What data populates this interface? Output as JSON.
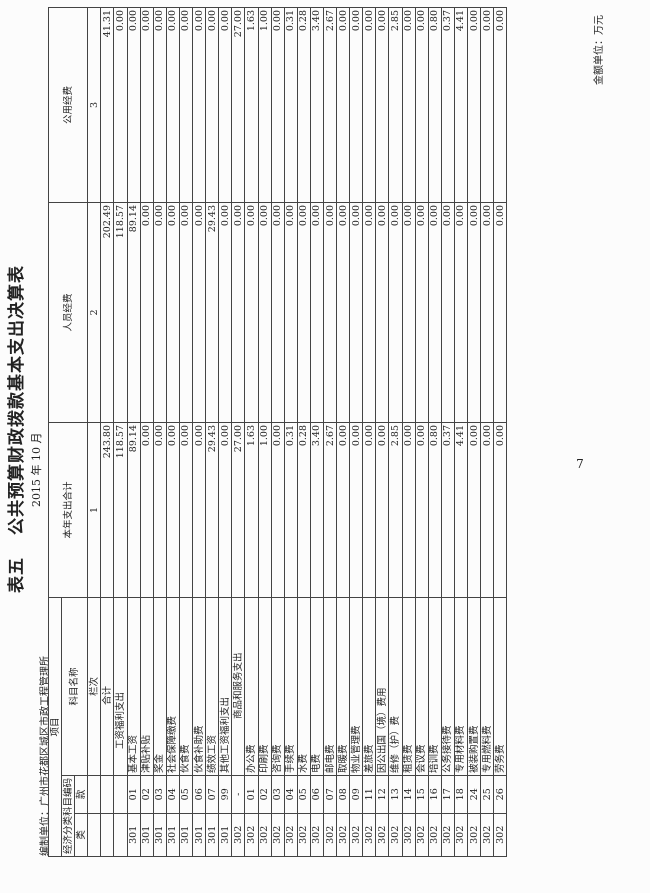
{
  "title": "公共预算财政拨款基本支出决算表",
  "table_no": "表五",
  "date": "2015 年 10 月",
  "org": "编制单位：广州市花都区城区市政工程管理所",
  "unit": "金额单位：万元",
  "page_number": "7",
  "headers": {
    "project": "项目",
    "econ_code": "经济分类科目编码",
    "item_name": "科目名称",
    "lei": "类",
    "kuan": "款",
    "total": "本年支出合计",
    "personnel": "人员经费",
    "public": "公用经费",
    "lanci": "栏次",
    "col1": "1",
    "col2": "2",
    "col3": "3"
  },
  "total_row": {
    "name": "合计",
    "total": "243.80",
    "personnel": "202.49",
    "public": "41.31"
  },
  "rows": [
    {
      "lei": "",
      "kuan": "",
      "name": "工资福利支出",
      "style": "ind1",
      "total": "118.57",
      "personnel": "118.57",
      "public": "0.00"
    },
    {
      "lei": "301",
      "kuan": "01",
      "name": "基本工资",
      "style": "",
      "total": "89.14",
      "personnel": "89.14",
      "public": "0.00"
    },
    {
      "lei": "301",
      "kuan": "02",
      "name": "津贴补贴",
      "style": "",
      "total": "0.00",
      "personnel": "0.00",
      "public": "0.00"
    },
    {
      "lei": "301",
      "kuan": "03",
      "name": "奖金",
      "style": "",
      "total": "0.00",
      "personnel": "0.00",
      "public": "0.00"
    },
    {
      "lei": "301",
      "kuan": "04",
      "name": "社会保障缴费",
      "style": "",
      "total": "0.00",
      "personnel": "0.00",
      "public": "0.00"
    },
    {
      "lei": "301",
      "kuan": "05",
      "name": "伙食费",
      "style": "",
      "total": "0.00",
      "personnel": "0.00",
      "public": "0.00"
    },
    {
      "lei": "301",
      "kuan": "06",
      "name": "伙食补助费",
      "style": "",
      "total": "0.00",
      "personnel": "0.00",
      "public": "0.00"
    },
    {
      "lei": "301",
      "kuan": "07",
      "name": "绩效工资",
      "style": "",
      "total": "29.43",
      "personnel": "29.43",
      "public": "0.00"
    },
    {
      "lei": "301",
      "kuan": "99",
      "name": "其他工资福利支出",
      "style": "",
      "total": "0.00",
      "personnel": "0.00",
      "public": "0.00"
    },
    {
      "lei": "302",
      "kuan": "-",
      "name": "商品和服务支出",
      "style": "ind2",
      "total": "27.00",
      "personnel": "0.00",
      "public": "27.00"
    },
    {
      "lei": "302",
      "kuan": "01",
      "name": "办公费",
      "style": "",
      "total": "1.63",
      "personnel": "0.00",
      "public": "1.63"
    },
    {
      "lei": "302",
      "kuan": "02",
      "name": "印刷费",
      "style": "",
      "total": "1.00",
      "personnel": "0.00",
      "public": "1.00"
    },
    {
      "lei": "302",
      "kuan": "03",
      "name": "咨询费",
      "style": "",
      "total": "0.00",
      "personnel": "0.00",
      "public": "0.00"
    },
    {
      "lei": "302",
      "kuan": "04",
      "name": "手续费",
      "style": "",
      "total": "0.31",
      "personnel": "0.00",
      "public": "0.31"
    },
    {
      "lei": "302",
      "kuan": "05",
      "name": "水费",
      "style": "",
      "total": "0.28",
      "personnel": "0.00",
      "public": "0.28"
    },
    {
      "lei": "302",
      "kuan": "06",
      "name": "电费",
      "style": "",
      "total": "3.40",
      "personnel": "0.00",
      "public": "3.40"
    },
    {
      "lei": "302",
      "kuan": "07",
      "name": "邮电费",
      "style": "",
      "total": "2.67",
      "personnel": "0.00",
      "public": "2.67"
    },
    {
      "lei": "302",
      "kuan": "08",
      "name": "取暖费",
      "style": "",
      "total": "0.00",
      "personnel": "0.00",
      "public": "0.00"
    },
    {
      "lei": "302",
      "kuan": "09",
      "name": "物业管理费",
      "style": "",
      "total": "0.00",
      "personnel": "0.00",
      "public": "0.00"
    },
    {
      "lei": "302",
      "kuan": "11",
      "name": "差旅费",
      "style": "",
      "total": "0.00",
      "personnel": "0.00",
      "public": "0.00"
    },
    {
      "lei": "302",
      "kuan": "12",
      "name": "因公出国（境）费用",
      "style": "",
      "total": "0.00",
      "personnel": "0.00",
      "public": "0.00"
    },
    {
      "lei": "302",
      "kuan": "13",
      "name": "维修（护）费",
      "style": "",
      "total": "2.85",
      "personnel": "0.00",
      "public": "2.85"
    },
    {
      "lei": "302",
      "kuan": "14",
      "name": "租赁费",
      "style": "",
      "total": "0.00",
      "personnel": "0.00",
      "public": "0.00"
    },
    {
      "lei": "302",
      "kuan": "15",
      "name": "会议费",
      "style": "",
      "total": "0.00",
      "personnel": "0.00",
      "public": "0.00"
    },
    {
      "lei": "302",
      "kuan": "16",
      "name": "培训费",
      "style": "",
      "total": "0.80",
      "personnel": "0.00",
      "public": "0.80"
    },
    {
      "lei": "302",
      "kuan": "17",
      "name": "公务接待费",
      "style": "",
      "total": "0.37",
      "personnel": "0.00",
      "public": "0.37"
    },
    {
      "lei": "302",
      "kuan": "18",
      "name": "专用材料费",
      "style": "",
      "total": "4.41",
      "personnel": "0.00",
      "public": "4.41"
    },
    {
      "lei": "302",
      "kuan": "24",
      "name": "被装购置费",
      "style": "",
      "total": "0.00",
      "personnel": "0.00",
      "public": "0.00"
    },
    {
      "lei": "302",
      "kuan": "25",
      "name": "专用燃料费",
      "style": "",
      "total": "0.00",
      "personnel": "0.00",
      "public": "0.00"
    },
    {
      "lei": "302",
      "kuan": "26",
      "name": "劳务费",
      "style": "",
      "total": "0.00",
      "personnel": "0.00",
      "public": "0.00"
    }
  ]
}
